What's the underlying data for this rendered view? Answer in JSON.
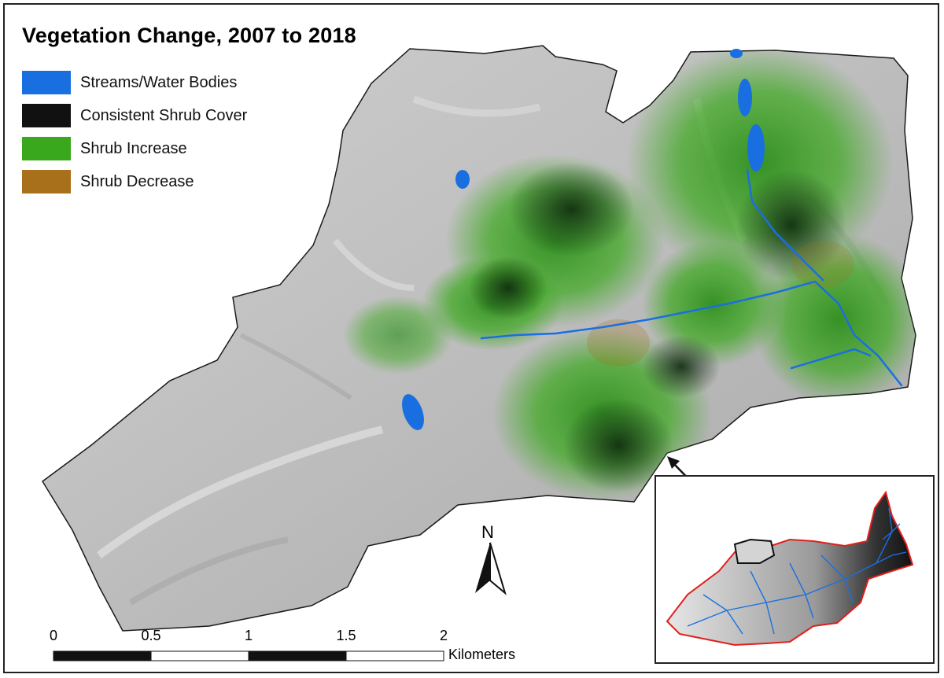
{
  "map": {
    "title": "Vegetation Change, 2007 to 2018",
    "legend": [
      {
        "label": "Streams/Water Bodies",
        "color": "#1a6fe0"
      },
      {
        "label": "Consistent Shrub Cover",
        "color": "#111111"
      },
      {
        "label": "Shrub Increase",
        "color": "#3aa81c"
      },
      {
        "label": "Shrub Decrease",
        "color": "#a8701a"
      }
    ],
    "north_arrow": {
      "label": "N"
    },
    "scale_bar": {
      "ticks": [
        "0",
        "0.5",
        "1",
        "1.5",
        "2"
      ],
      "unit": "Kilometers"
    },
    "inset": {
      "outline_color": "#e0201c",
      "stream_color": "#1a6fe0"
    }
  }
}
